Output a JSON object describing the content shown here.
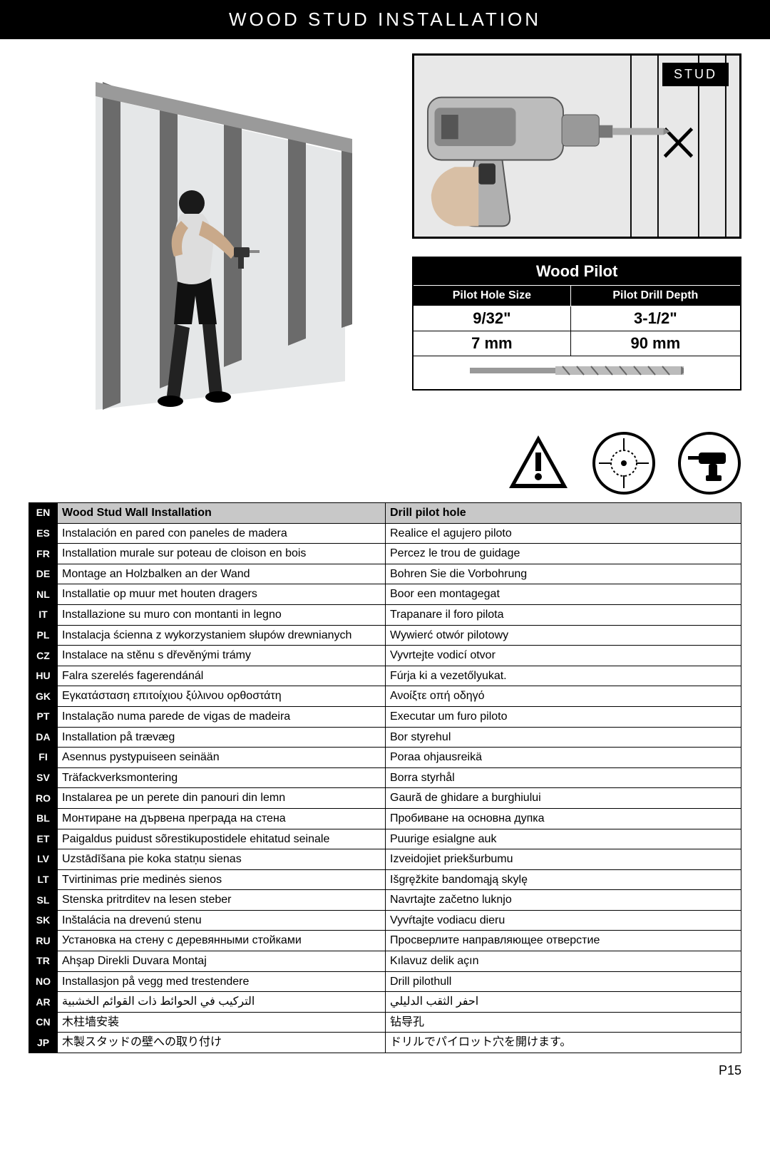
{
  "title": "WOOD STUD INSTALLATION",
  "stud_label": "STUD",
  "spec": {
    "title": "Wood Pilot",
    "col1_header": "Pilot Hole Size",
    "col2_header": "Pilot Drill Depth",
    "imp_size": "9/32\"",
    "imp_depth": "3-1/2\"",
    "met_size": "7 mm",
    "met_depth": "90 mm"
  },
  "table": {
    "header_left": "Wood Stud Wall Installation",
    "header_right": "Drill pilot hole",
    "rows": [
      {
        "code": "EN",
        "left": "Wood Stud Wall Installation",
        "right": "Drill pilot hole",
        "header": true
      },
      {
        "code": "ES",
        "left": "Instalación en pared con paneles de madera",
        "right": "Realice el agujero piloto"
      },
      {
        "code": "FR",
        "left": "Installation murale sur poteau de cloison en bois",
        "right": "Percez le trou de guidage"
      },
      {
        "code": "DE",
        "left": "Montage an Holzbalken an der Wand",
        "right": "Bohren Sie die Vorbohrung"
      },
      {
        "code": "NL",
        "left": "Installatie op muur met houten dragers",
        "right": "Boor een montagegat"
      },
      {
        "code": "IT",
        "left": "Installazione su muro con montanti in legno",
        "right": "Trapanare il foro pilota"
      },
      {
        "code": "PL",
        "left": "Instalacja ścienna z wykorzystaniem słupów drewnianych",
        "right": "Wywierć otwór pilotowy"
      },
      {
        "code": "CZ",
        "left": "Instalace na stěnu s dřevěnými trámy",
        "right": "Vyvrtejte vodicí otvor"
      },
      {
        "code": "HU",
        "left": "Falra szerelés fagerendánál",
        "right": "Fúrja ki a vezetőlyukat."
      },
      {
        "code": "GK",
        "left": "Εγκατάσταση επιτοίχιου ξύλινου ορθοστάτη",
        "right": "Ανοίξτε οπή οδηγό"
      },
      {
        "code": "PT",
        "left": "Instalação numa parede de vigas de madeira",
        "right": "Executar um furo piloto"
      },
      {
        "code": "DA",
        "left": "Installation på trævæg",
        "right": "Bor styrehul"
      },
      {
        "code": "FI",
        "left": "Asennus pystypuiseen seinään",
        "right": "Poraa ohjausreikä"
      },
      {
        "code": "SV",
        "left": "Träfackverksmontering",
        "right": "Borra styrhål"
      },
      {
        "code": "RO",
        "left": "Instalarea pe un perete din panouri din lemn",
        "right": "Gaură de ghidare a burghiului"
      },
      {
        "code": "BL",
        "left": "Монтиране на дървена преграда на стена",
        "right": "Пробиване на основна дупка"
      },
      {
        "code": "ET",
        "left": "Paigaldus puidust sõrestikupostidele ehitatud seinale",
        "right": "Puurige esialgne auk"
      },
      {
        "code": "LV",
        "left": "Uzstādīšana pie koka statņu sienas",
        "right": "Izveidojiet priekšurbumu"
      },
      {
        "code": "LT",
        "left": "Tvirtinimas prie medinės sienos",
        "right": "Išgręžkite bandomąją skylę"
      },
      {
        "code": "SL",
        "left": "Stenska pritrditev na lesen steber",
        "right": "Navrtajte začetno luknjo"
      },
      {
        "code": "SK",
        "left": "Inštalácia na drevenú stenu",
        "right": "Vyvŕtajte vodiacu dieru"
      },
      {
        "code": "RU",
        "left": "Установка на стену с деревянными стойками",
        "right": "Просверлите направляющее отверстие"
      },
      {
        "code": "TR",
        "left": "Ahşap Direkli Duvara Montaj",
        "right": "Kılavuz delik açın"
      },
      {
        "code": "NO",
        "left": "Installasjon på vegg med trestendere",
        "right": "Drill pilothull"
      },
      {
        "code": "AR",
        "left": "التركيب في الحوائط ذات القوائم الخشبية",
        "right": "احفر الثقب الدليلي"
      },
      {
        "code": "CN",
        "left": "木柱墙安装",
        "right": "钻导孔"
      },
      {
        "code": "JP",
        "left": "木製スタッドの壁への取り付け",
        "right": "ドリルでパイロット穴を開けます。"
      }
    ]
  },
  "page_number": "P15",
  "colors": {
    "black": "#000000",
    "white": "#ffffff",
    "header_gray": "#c8c8c8",
    "panel_gray": "#e8e8e8"
  }
}
